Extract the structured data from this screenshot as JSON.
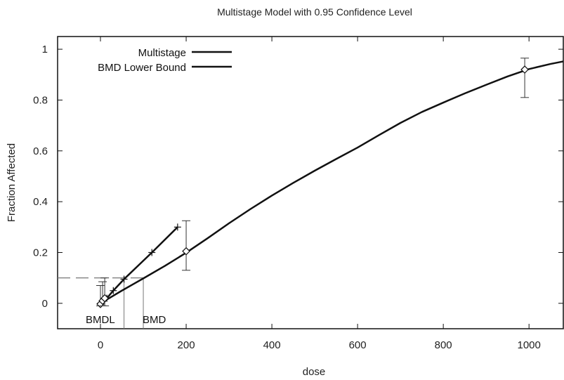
{
  "chart_data": {
    "type": "line",
    "title": "Multistage Model with 0.95 Confidence Level",
    "xlabel": "dose",
    "ylabel": "Fraction Affected",
    "xlim": [
      -100,
      1080
    ],
    "ylim": [
      -0.1,
      1.05
    ],
    "x_ticks": [
      0,
      200,
      400,
      600,
      800,
      1000
    ],
    "x_tick_labels": [
      "0",
      "200",
      "400",
      "600",
      "800",
      "1000"
    ],
    "y_ticks": [
      0,
      0.2,
      0.4,
      0.6,
      0.8,
      1
    ],
    "y_tick_labels": [
      "0",
      "0.2",
      "0.4",
      "0.6",
      "0.8",
      "1"
    ],
    "grid": false,
    "legend_position": "top-left",
    "series": [
      {
        "name": "Multistage",
        "kind": "curve",
        "color": "#111111",
        "x": [
          0,
          25,
          50,
          75,
          100,
          150,
          200,
          250,
          300,
          350,
          400,
          450,
          500,
          550,
          600,
          650,
          700,
          750,
          800,
          850,
          900,
          950,
          1000,
          1050,
          1080
        ],
        "y": [
          0,
          0.025,
          0.05,
          0.074,
          0.098,
          0.147,
          0.199,
          0.256,
          0.315,
          0.371,
          0.424,
          0.474,
          0.522,
          0.568,
          0.613,
          0.662,
          0.71,
          0.753,
          0.79,
          0.826,
          0.86,
          0.893,
          0.922,
          0.942,
          0.952
        ]
      },
      {
        "name": "BMD Lower Bound",
        "kind": "line-with-markers",
        "color": "#111111",
        "x": [
          0,
          15,
          30,
          55,
          120,
          180
        ],
        "y": [
          0,
          0.02,
          0.05,
          0.095,
          0.2,
          0.3
        ]
      }
    ],
    "observed_points": {
      "marker": "diamond",
      "x": [
        0,
        5,
        10,
        200,
        990
      ],
      "y": [
        -0.003,
        0.01,
        0.02,
        0.205,
        0.92
      ],
      "err_low": [
        -0.01,
        -0.01,
        -0.01,
        0.13,
        0.81
      ],
      "err_high": [
        0.07,
        0.085,
        0.1,
        0.325,
        0.965
      ]
    },
    "bmr": 0.1,
    "bmdl": 55,
    "bmd": 100,
    "annotations": [
      "BMDL",
      "BMD"
    ]
  }
}
